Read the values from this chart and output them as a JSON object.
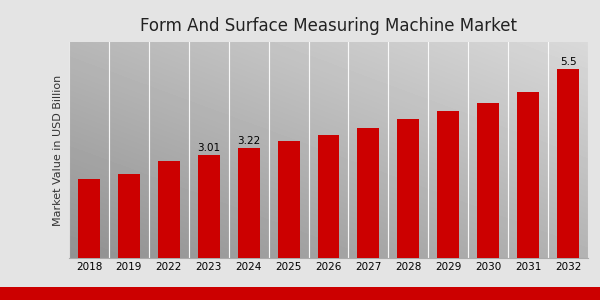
{
  "title": "Form And Surface Measuring Machine Market",
  "ylabel": "Market Value in USD Billion",
  "years": [
    "2018",
    "2019",
    "2022",
    "2023",
    "2024",
    "2025",
    "2026",
    "2027",
    "2028",
    "2029",
    "2030",
    "2031",
    "2032"
  ],
  "values": [
    2.3,
    2.45,
    2.82,
    3.01,
    3.22,
    3.42,
    3.6,
    3.8,
    4.05,
    4.28,
    4.52,
    4.85,
    5.5
  ],
  "bar_color": "#cc0000",
  "bar_annotations": {
    "2023": "3.01",
    "2024": "3.22",
    "2032": "5.5"
  },
  "bottom_strip_color": "#cc0000",
  "title_fontsize": 12,
  "ylabel_fontsize": 8,
  "tick_fontsize": 7.5,
  "annotation_fontsize": 7.5,
  "ylim_max": 6.3,
  "bg_light": "#f0f0f0",
  "bg_mid": "#d8d8d8"
}
